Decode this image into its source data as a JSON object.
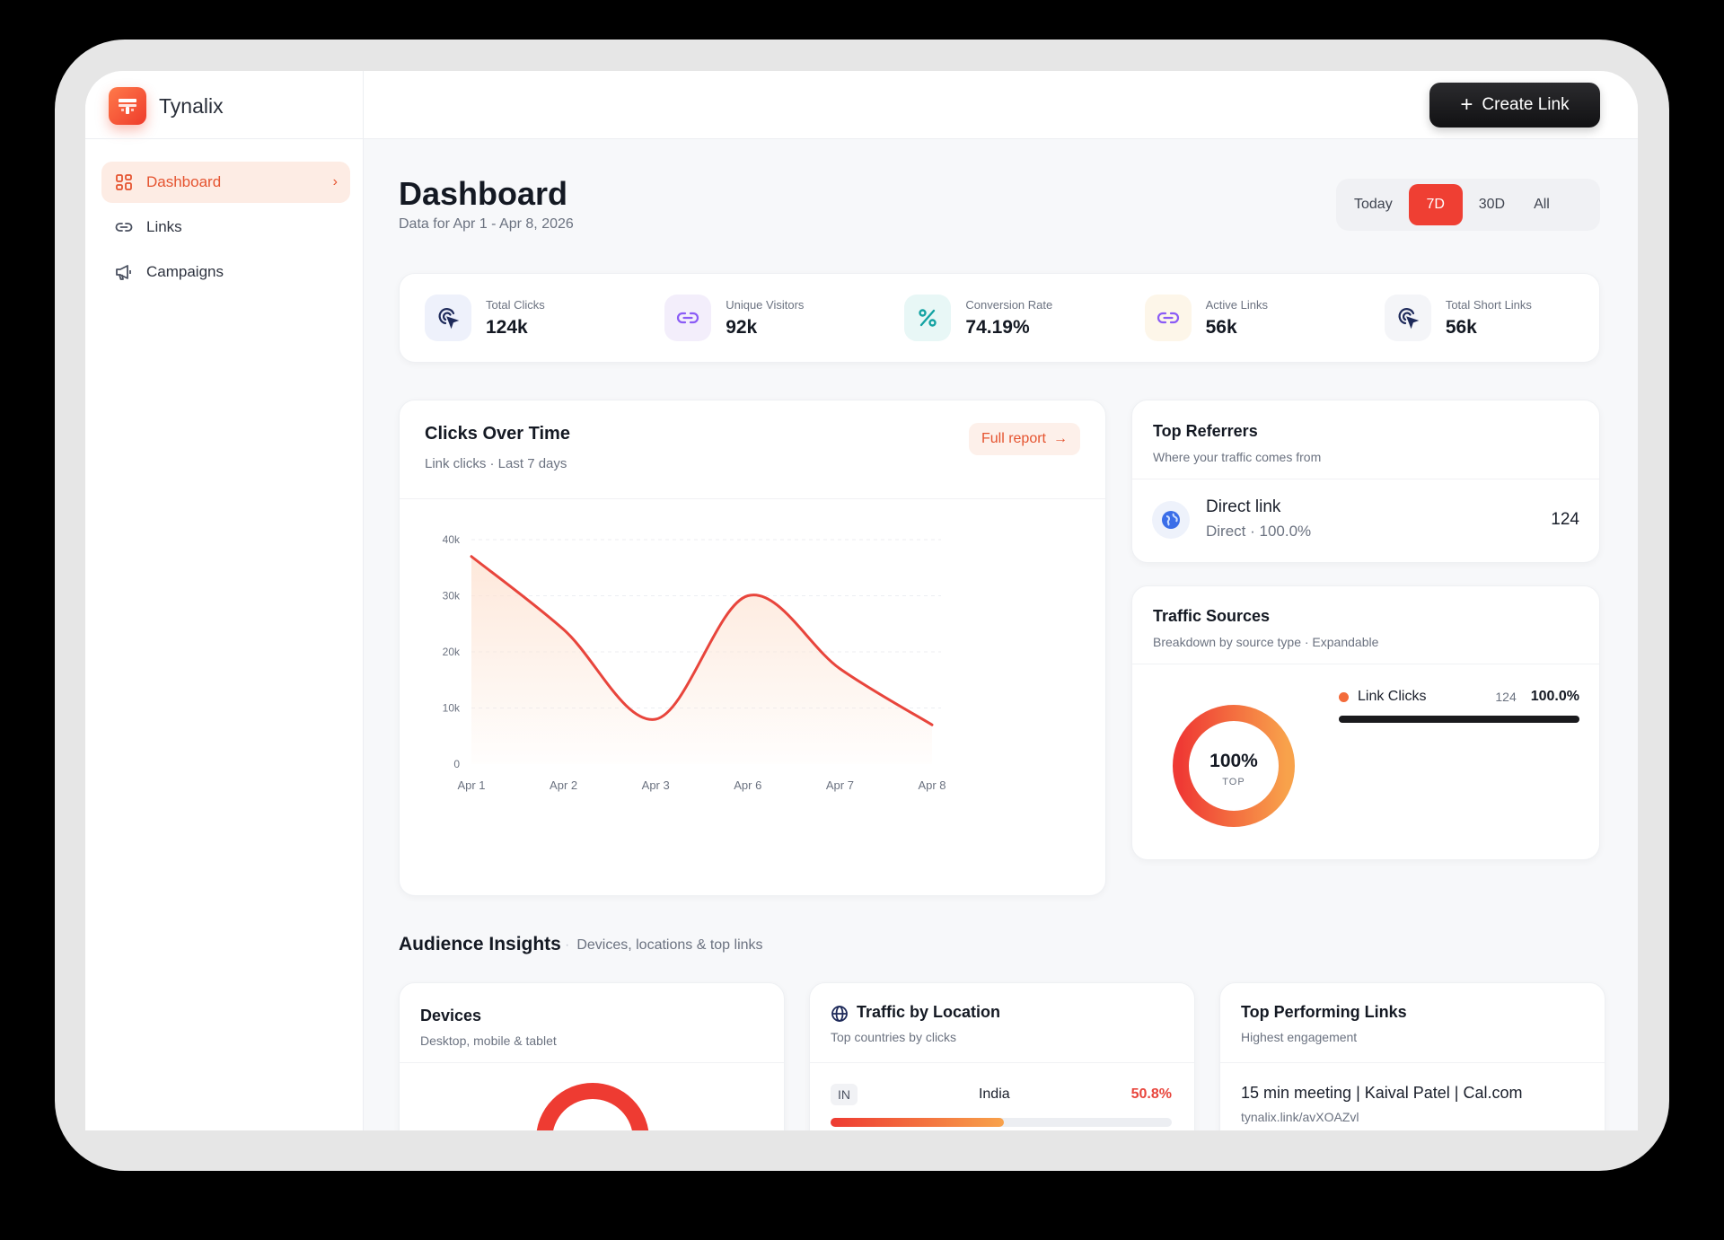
{
  "brand": {
    "name": "Tynalix"
  },
  "sidebar": {
    "items": [
      {
        "label": "Dashboard",
        "active": true,
        "icon": "grid-icon"
      },
      {
        "label": "Links",
        "active": false,
        "icon": "link-icon"
      },
      {
        "label": "Campaigns",
        "active": false,
        "icon": "megaphone-icon"
      }
    ]
  },
  "topbar": {
    "create_label": "Create Link"
  },
  "header": {
    "title": "Dashboard",
    "subtitle": "Data for Apr 1 - Apr 8, 2026"
  },
  "range": {
    "options": [
      "Today",
      "7D",
      "30D",
      "All"
    ],
    "selected": "7D"
  },
  "stats": [
    {
      "label": "Total Clicks",
      "value": "124k",
      "icon": "cursor-click-icon",
      "bg": "#eef1fb",
      "color": "#1e2a5a"
    },
    {
      "label": "Unique Visitors",
      "value": "92k",
      "icon": "link-icon",
      "bg": "#f3eefb",
      "color": "#8b5cf6"
    },
    {
      "label": "Conversion Rate",
      "value": "74.19%",
      "icon": "percent-icon",
      "bg": "#e8f7f6",
      "color": "#14a3a3"
    },
    {
      "label": "Active Links",
      "value": "56k",
      "icon": "link-icon",
      "bg": "#fdf6e9",
      "color": "#8b5cf6"
    },
    {
      "label": "Total Short Links",
      "value": "56k",
      "icon": "cursor-click-icon",
      "bg": "#f4f5f8",
      "color": "#1e2a5a"
    }
  ],
  "clicks_card": {
    "title": "Clicks Over Time",
    "subtitle": "Link clicks · Last 7 days",
    "full_report_label": "Full report"
  },
  "chart_data": {
    "type": "area",
    "categories": [
      "Apr 1",
      "Apr 2",
      "Apr 3",
      "Apr 6",
      "Apr 7",
      "Apr 8"
    ],
    "values": [
      37000,
      24000,
      8000,
      30000,
      17000,
      7000
    ],
    "ylim": [
      0,
      40000
    ],
    "y_ticks": [
      "0",
      "10k",
      "20k",
      "30k",
      "40k"
    ],
    "grid": true,
    "line_color": "#e8453c",
    "fill_color": "#fde4d4"
  },
  "referrers": {
    "title": "Top Referrers",
    "subtitle": "Where your traffic comes from",
    "items": [
      {
        "name": "Direct link",
        "detail": "Direct · 100.0%",
        "count": "124",
        "icon": "globe-icon"
      }
    ]
  },
  "traffic_sources": {
    "title": "Traffic Sources",
    "subtitle": "Breakdown by source type · Expandable",
    "donut_value": "100%",
    "donut_label": "TOP",
    "donut_fraction": 1.0,
    "items": [
      {
        "name": "Link Clicks",
        "count": "124",
        "percent": "100.0%",
        "fraction": 1.0,
        "dot_color": "#f36b3a"
      }
    ]
  },
  "audience": {
    "title": "Audience Insights",
    "subtitle": "Devices, locations & top links"
  },
  "devices": {
    "title": "Devices",
    "subtitle": "Desktop, mobile & tablet"
  },
  "location": {
    "title": "Traffic by Location",
    "subtitle": "Top countries by clicks",
    "items": [
      {
        "code": "IN",
        "country": "India",
        "percent": "50.8%",
        "fraction": 0.508
      }
    ]
  },
  "top_links": {
    "title": "Top Performing Links",
    "subtitle": "Highest engagement",
    "items": [
      {
        "title": "15 min meeting | Kaival Patel | Cal.com",
        "url": "tynalix.link/avXOAZvl"
      }
    ]
  }
}
